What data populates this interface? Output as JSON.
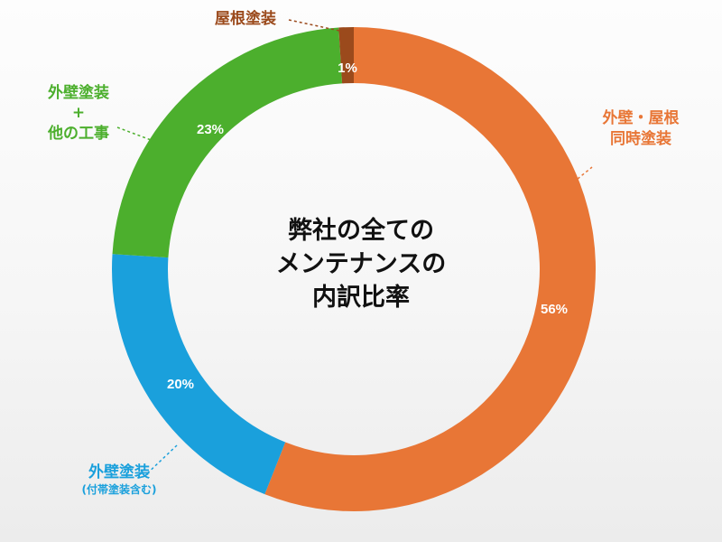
{
  "chart_data": {
    "type": "donut",
    "center_title": [
      "弊社の全ての",
      "メンテナンスの",
      "内訳比率"
    ],
    "slices": [
      {
        "label_lines": [
          "外壁・屋根",
          "同時塗装"
        ],
        "value": 56,
        "display": "56%",
        "color": "#E87636"
      },
      {
        "label_lines": [
          "外壁塗装",
          "(付帯塗装含む)"
        ],
        "value": 20,
        "display": "20%",
        "color": "#1AA0DC"
      },
      {
        "label_lines": [
          "外壁塗装",
          "+",
          "他の工事"
        ],
        "value": 23,
        "display": "23%",
        "color": "#4CAF2D"
      },
      {
        "label_lines": [
          "屋根塗装"
        ],
        "value": 1,
        "display": "1%",
        "color": "#9B4A1C"
      }
    ],
    "start_angle_deg": 0,
    "direction": "clockwise",
    "label_style": "outside labels with dashed leader lines",
    "background": "#f6f6f6"
  }
}
